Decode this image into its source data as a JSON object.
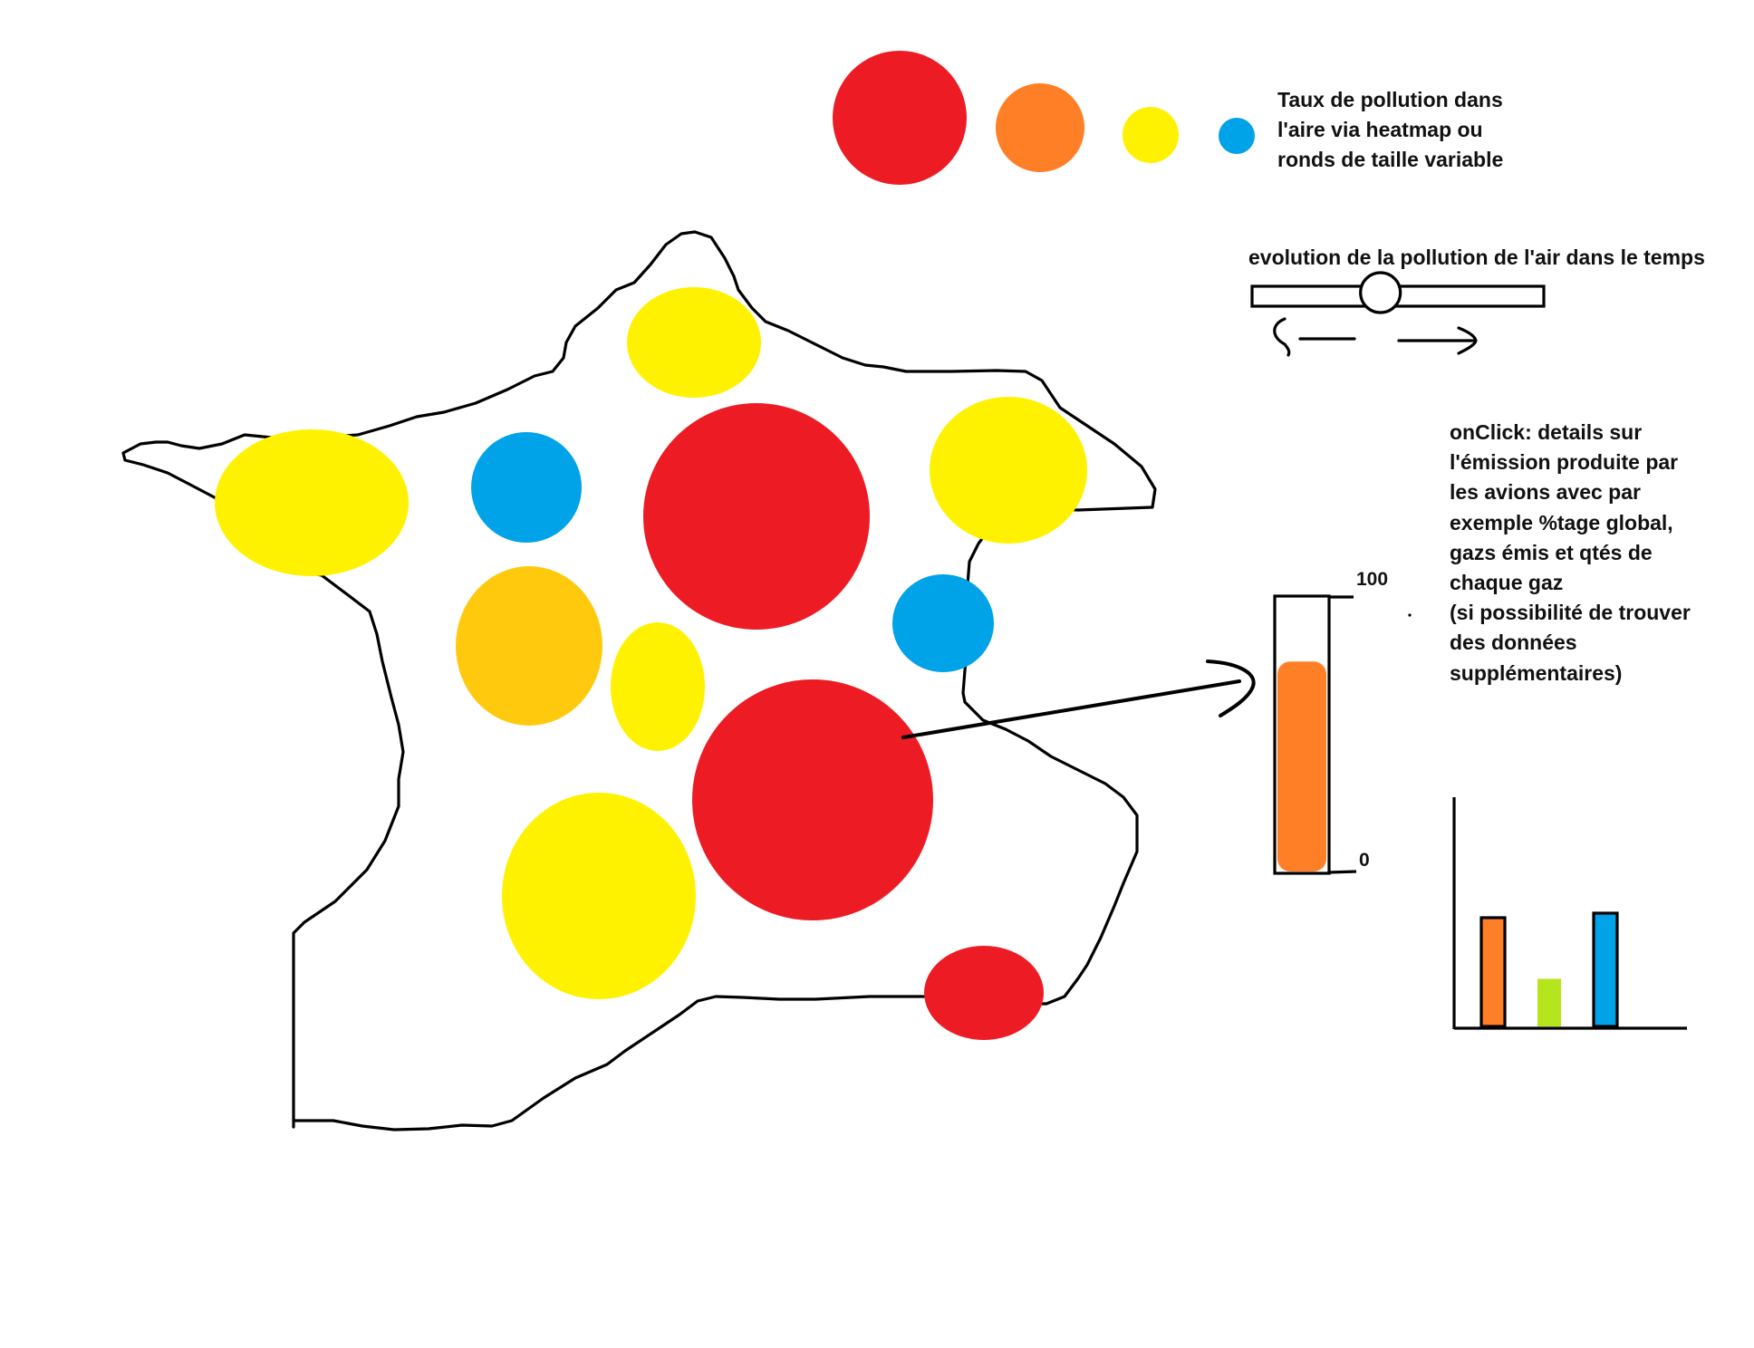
{
  "legend": {
    "description": "Taux de pollution dans\nl'aire via heatmap ou\nronds de taille variable",
    "swatches": [
      {
        "name": "legend-circle-red",
        "color": "#ed1c24"
      },
      {
        "name": "legend-circle-orange",
        "color": "#ff7f27"
      },
      {
        "name": "legend-circle-yellow",
        "color": "#fff200"
      },
      {
        "name": "legend-circle-blue",
        "color": "#00a2e8"
      }
    ]
  },
  "timeline": {
    "title": "evolution de la pollution de l'air dans le temps",
    "position": 0.44,
    "left_arrow_icon": "arrow-left-icon",
    "right_arrow_icon": "arrow-right-icon"
  },
  "details": {
    "text": "onClick: details sur\nl'émission produite par\nles avions avec par\nexemple %tage global,\ngazs émis et qtés de\nchaque gaz\n(si possibilité de trouver\ndes données\nsupplémentaires)"
  },
  "gauge": {
    "max_label": "100",
    "min_label": "0",
    "level": 0.77,
    "fill_color": "#ff7f27"
  },
  "colors": {
    "red": "#ed1c24",
    "orange": "#ff7f27",
    "amber": "#ffc90e",
    "yellow": "#fff200",
    "blue": "#00a2e8",
    "lime": "#b5e61d",
    "outline": "#000000"
  },
  "chart_data": {
    "type": "bar",
    "categories": [
      "",
      "",
      ""
    ],
    "values": [
      0.48,
      0.21,
      0.5
    ],
    "colors": [
      "#ff7f27",
      "#b5e61d",
      "#00a2e8"
    ],
    "title": "",
    "xlabel": "",
    "ylabel": "",
    "ylim": [
      0,
      1
    ]
  }
}
